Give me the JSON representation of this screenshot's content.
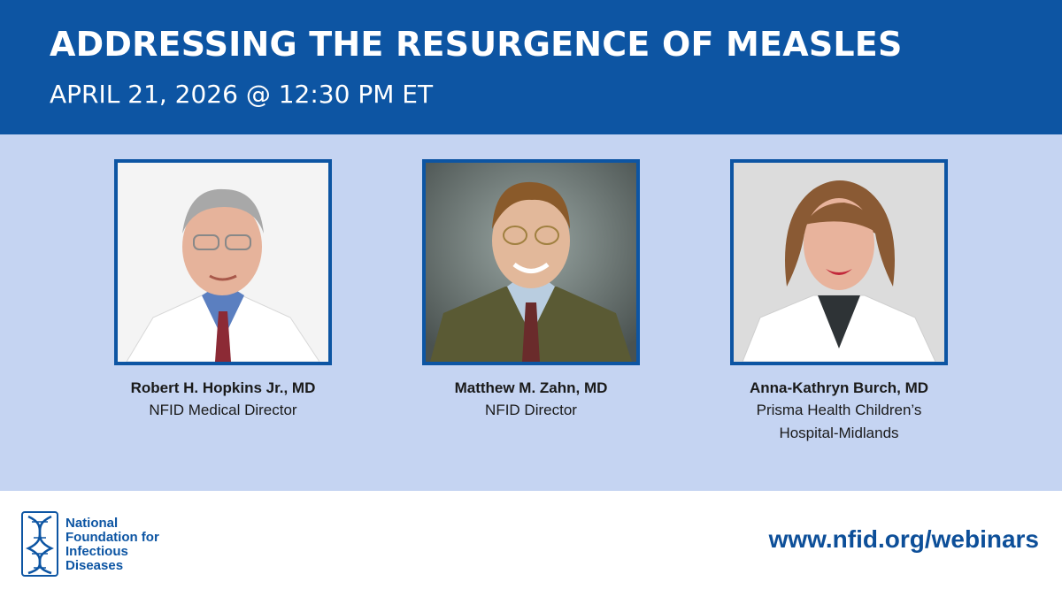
{
  "header": {
    "title": "ADDRESSING THE RESURGENCE OF MEASLES",
    "date": "APRIL 21, 2026 @ 12:30 PM ET"
  },
  "speakers": [
    {
      "name": "Robert H. Hopkins Jr., MD",
      "role_line1": "NFID Medical Director",
      "role_line2": ""
    },
    {
      "name": "Matthew M. Zahn, MD",
      "role_line1": "NFID Director",
      "role_line2": ""
    },
    {
      "name": "Anna-Kathryn Burch, MD",
      "role_line1": "Prisma Health Children’s",
      "role_line2": "Hospital-Midlands"
    }
  ],
  "footer": {
    "org_line1": "National",
    "org_line2": "Foundation for",
    "org_line3": "Infectious",
    "org_line4": "Diseases",
    "url": "www.nfid.org/webinars"
  },
  "colors": {
    "header_bg": "#0d55a3",
    "panel_bg": "#c5d4f2",
    "accent": "#0d55a3"
  }
}
